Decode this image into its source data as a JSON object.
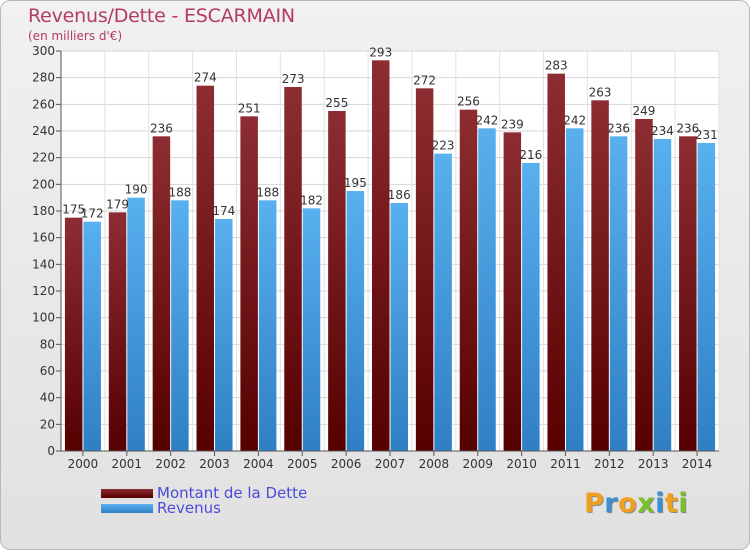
{
  "header": {
    "title": "Revenus/Dette - ESCARMAIN",
    "subtitle": "(en milliers d'€)"
  },
  "chart_data": {
    "type": "bar",
    "title": "Revenus/Dette - ESCARMAIN",
    "subtitle": "(en milliers d'€)",
    "xlabel": "",
    "ylabel": "",
    "categories": [
      "2000",
      "2001",
      "2002",
      "2003",
      "2004",
      "2005",
      "2006",
      "2007",
      "2008",
      "2009",
      "2010",
      "2011",
      "2012",
      "2013",
      "2014"
    ],
    "series": [
      {
        "name": "Montant de la Dette",
        "color": "#7d1d1d",
        "values": [
          175,
          179,
          236,
          274,
          251,
          273,
          255,
          293,
          272,
          256,
          239,
          283,
          263,
          249,
          236
        ]
      },
      {
        "name": "Revenus",
        "color": "#4aa3e6",
        "values": [
          172,
          190,
          188,
          174,
          188,
          182,
          195,
          186,
          223,
          242,
          216,
          242,
          236,
          234,
          231
        ]
      }
    ],
    "ylim": [
      0,
      300
    ],
    "yticks": [
      0,
      20,
      40,
      60,
      80,
      100,
      120,
      140,
      160,
      180,
      200,
      220,
      240,
      260,
      280,
      300
    ],
    "grid": true,
    "legend_position": "bottom-left",
    "data_labels": true
  },
  "logo": {
    "text": "Proxiti",
    "letters": [
      "P",
      "r",
      "o",
      "x",
      "i",
      "t",
      "i"
    ],
    "colors": [
      "#f0a020",
      "#3a8fd0",
      "#f0a020",
      "#7bbf2a",
      "#3a8fd0",
      "#f0a020",
      "#7bbf2a"
    ]
  }
}
